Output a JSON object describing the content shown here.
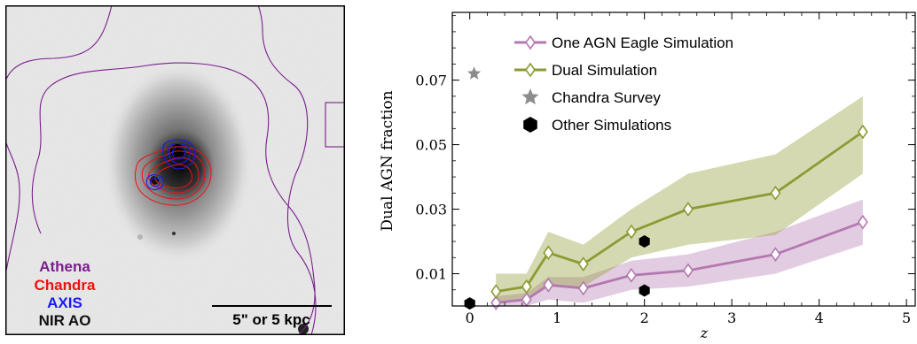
{
  "image_panel": {
    "instrument_labels": [
      {
        "label": "Athena",
        "color": "#7b1e8c"
      },
      {
        "label": "Chandra",
        "color": "#ee1111"
      },
      {
        "label": "AXIS",
        "color": "#1a1aee"
      },
      {
        "label": "NIR AO",
        "color": "#111111"
      }
    ],
    "scale_bar_label": "5\" or 5 kpc"
  },
  "chart_data": {
    "type": "line",
    "xlabel": "z",
    "ylabel": "Dual AGN fraction",
    "xlim": [
      -0.2,
      5.1
    ],
    "ylim": [
      0.0,
      0.091
    ],
    "x_ticks": [
      0,
      1,
      2,
      3,
      4,
      5
    ],
    "y_ticks": [
      0.01,
      0.03,
      0.05,
      0.07
    ],
    "y_tick_labels": [
      "0.01",
      "0.03",
      "0.05",
      "0.07"
    ],
    "legend_position": "top-center",
    "series": [
      {
        "name": "One AGN Eagle Simulation",
        "color": "#b478b0",
        "marker": "diamond",
        "x": [
          0.3,
          0.65,
          0.9,
          1.3,
          1.85,
          2.5,
          3.5,
          4.5
        ],
        "y": [
          0.001,
          0.002,
          0.0065,
          0.0055,
          0.0095,
          0.011,
          0.016,
          0.026
        ],
        "y_low": [
          0.0,
          0.0,
          0.002,
          0.001,
          0.005,
          0.006,
          0.01,
          0.019
        ],
        "y_high": [
          0.003,
          0.004,
          0.009,
          0.009,
          0.014,
          0.016,
          0.023,
          0.033
        ]
      },
      {
        "name": "Dual Simulation",
        "color": "#8d9a33",
        "marker": "diamond",
        "x": [
          0.3,
          0.65,
          0.9,
          1.3,
          1.85,
          2.5,
          3.5,
          4.5
        ],
        "y": [
          0.0045,
          0.006,
          0.0165,
          0.013,
          0.023,
          0.03,
          0.035,
          0.054
        ],
        "y_low": [
          0.001,
          0.0015,
          0.006,
          0.006,
          0.015,
          0.019,
          0.022,
          0.041
        ],
        "y_high": [
          0.01,
          0.01,
          0.023,
          0.019,
          0.03,
          0.041,
          0.047,
          0.065
        ]
      },
      {
        "name": "Chandra Survey",
        "color": "#8c8c8c",
        "marker": "star",
        "x": [
          0.05
        ],
        "y": [
          0.072
        ]
      },
      {
        "name": "Other Simulations",
        "color": "#000000",
        "marker": "hexagon",
        "x": [
          0.0,
          2.0,
          2.0
        ],
        "y": [
          0.0008,
          0.02,
          0.0048
        ]
      }
    ]
  }
}
